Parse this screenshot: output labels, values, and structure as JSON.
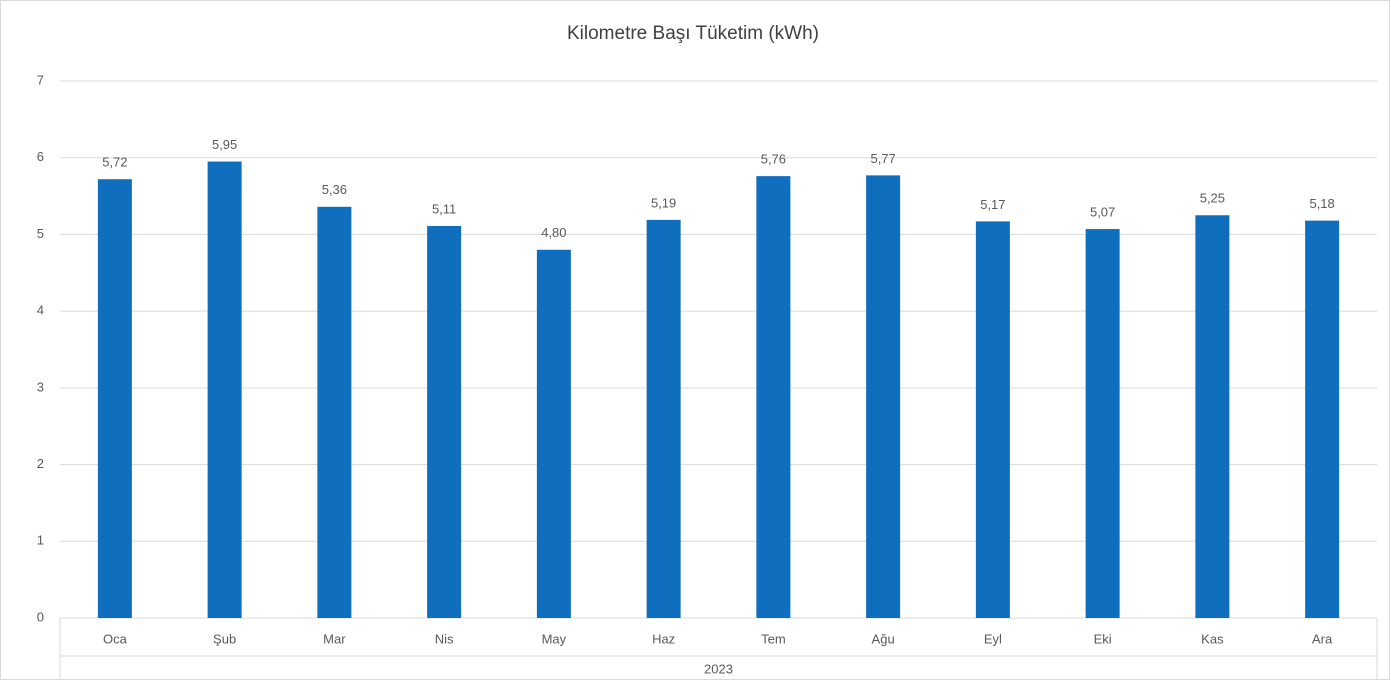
{
  "chart_data": {
    "type": "bar",
    "title": "Kilometre Başı Tüketim (kWh)",
    "categories": [
      "Oca",
      "Şub",
      "Mar",
      "Nis",
      "May",
      "Haz",
      "Tem",
      "Ağu",
      "Eyl",
      "Eki",
      "Kas",
      "Ara"
    ],
    "category_group": "2023",
    "values": [
      5.72,
      5.95,
      5.36,
      5.11,
      4.8,
      5.19,
      5.76,
      5.77,
      5.17,
      5.07,
      5.25,
      5.18
    ],
    "value_labels": [
      "5,72",
      "5,95",
      "5,36",
      "5,11",
      "4,80",
      "5,19",
      "5,76",
      "5,77",
      "5,17",
      "5,07",
      "5,25",
      "5,18"
    ],
    "color": "#106ebe",
    "ylim": [
      0,
      7
    ],
    "yticks": [
      0,
      1,
      2,
      3,
      4,
      5,
      6,
      7
    ],
    "grid": true
  }
}
